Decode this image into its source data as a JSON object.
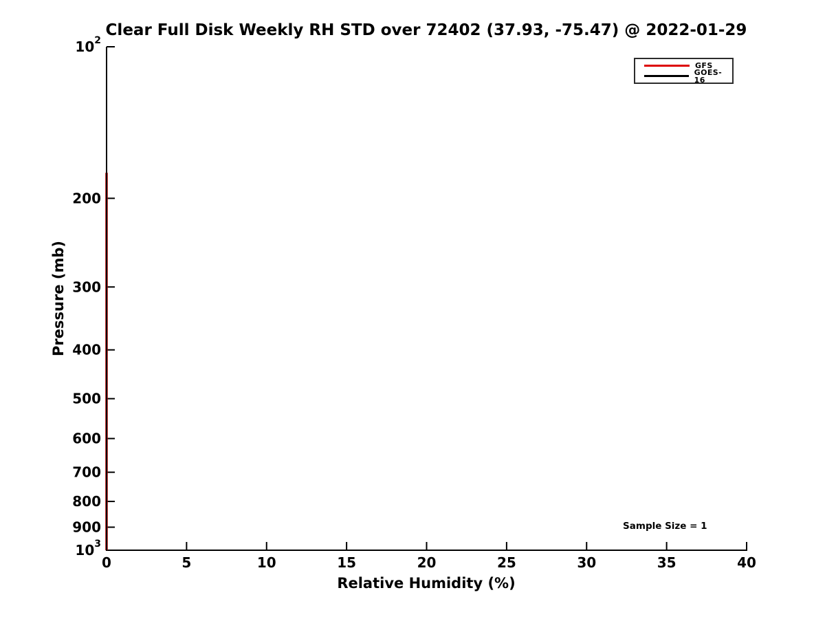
{
  "chart_data": {
    "type": "line",
    "title": "Clear Full Disk Weekly RH STD over 72402 (37.93, -75.47) @ 2022-01-29",
    "xlabel": "Relative Humidity (%)",
    "ylabel": "Pressure (mb)",
    "xlim": [
      0,
      40
    ],
    "xticks": [
      0,
      5,
      10,
      15,
      20,
      25,
      30,
      35,
      40
    ],
    "yscale": "log",
    "ylim": [
      100,
      1000
    ],
    "y_axis_inverted": true,
    "yticks": [
      {
        "value": 100,
        "label": "10^2"
      },
      {
        "value": 200,
        "label": "200"
      },
      {
        "value": 300,
        "label": "300"
      },
      {
        "value": 400,
        "label": "400"
      },
      {
        "value": 500,
        "label": "500"
      },
      {
        "value": 600,
        "label": "600"
      },
      {
        "value": 700,
        "label": "700"
      },
      {
        "value": 800,
        "label": "800"
      },
      {
        "value": 900,
        "label": "900"
      },
      {
        "value": 1000,
        "label": "10^3"
      }
    ],
    "grid": false,
    "legend": {
      "position": "upper right",
      "entries": [
        {
          "label": "GFS",
          "color": "#dd0000"
        },
        {
          "label": "GOES-16",
          "color": "#000000"
        }
      ]
    },
    "series": [
      {
        "name": "GFS",
        "color": "#dd0000",
        "linewidth": 3.5,
        "points": [
          {
            "x": 0,
            "pressure": 178
          },
          {
            "x": 0,
            "pressure": 1000
          }
        ]
      },
      {
        "name": "GOES-16",
        "color": "#000000",
        "linewidth": 2.2,
        "points": [
          {
            "x": 0,
            "pressure": 178
          },
          {
            "x": 0,
            "pressure": 1000
          }
        ]
      }
    ],
    "annotations": [
      {
        "text": "Sample Size = 1",
        "x": 34.9,
        "pressure": 895
      }
    ]
  }
}
